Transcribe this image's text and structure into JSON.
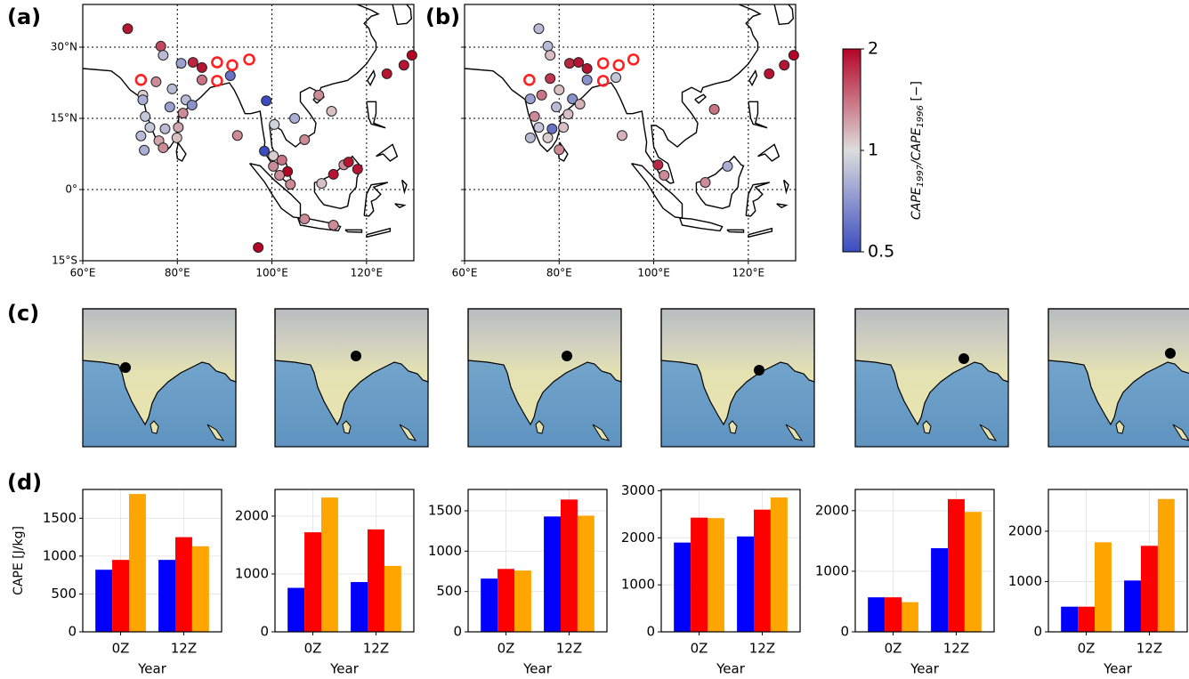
{
  "panel_labels": [
    "(a)",
    "(b)",
    "(c)",
    "(d)"
  ],
  "chart_data": [
    {
      "type": "map-scatter",
      "xlim": [
        60,
        130
      ],
      "ylim": [
        -15,
        39
      ],
      "xticks": [
        {
          "value": 60,
          "label": "60°E"
        },
        {
          "value": 80,
          "label": "80°E"
        },
        {
          "value": 100,
          "label": "100°E"
        },
        {
          "value": 120,
          "label": "120°E"
        }
      ],
      "yticks": [
        {
          "value": -15,
          "label": "15°S"
        },
        {
          "value": 0,
          "label": "0°"
        },
        {
          "value": 15,
          "label": "15°N"
        },
        {
          "value": 30,
          "label": "30°N"
        }
      ],
      "ytick_labels": true,
      "grid": true,
      "series": [
        {
          "marker": "filled",
          "x": [
            69.5,
            76.5,
            77,
            80.8,
            83.3,
            85.2,
            85.2,
            91.2,
            72.7,
            75.5,
            78.9,
            72.7,
            78.4,
            81.8,
            83.1,
            81.2,
            73.2,
            74.2,
            77.4,
            80.2,
            72.3,
            76.1,
            79.9,
            73,
            77,
            98.8,
            100.5,
            104.8,
            109.9,
            112.6,
            92.7,
            106.9,
            98.4,
            100.3,
            100.3,
            102.1,
            103.3,
            101.6,
            103.9,
            110.5,
            113,
            115.2,
            116.2,
            118.1,
            106.9,
            113,
            97.1,
            124.3,
            127.9,
            129.6
          ],
          "y": [
            33.9,
            30.2,
            28.3,
            26.6,
            26.8,
            25.7,
            23.1,
            24,
            19.9,
            22.7,
            21.2,
            18.9,
            17.4,
            18.9,
            17.8,
            16.1,
            15.4,
            13.1,
            12.8,
            13.1,
            11.3,
            10.3,
            10.9,
            8.3,
            8.8,
            18.7,
            13.7,
            15,
            19.9,
            16.5,
            11.4,
            10.5,
            8.1,
            7.1,
            4.9,
            6.2,
            3.8,
            3,
            1.1,
            1.3,
            3.2,
            5.2,
            5.8,
            4.3,
            -6.2,
            -7.5,
            -12.2,
            24.4,
            26.2,
            28.3
          ],
          "values": [
            1.9,
            1.6,
            0.85,
            0.75,
            1.8,
            1.9,
            1.4,
            0.6,
            1.05,
            1.3,
            0.85,
            0.8,
            0.75,
            0.85,
            0.7,
            1.3,
            0.9,
            0.9,
            0.85,
            1.2,
            0.85,
            1.2,
            1.1,
            0.8,
            1.3,
            0.5,
            0.95,
            0.8,
            1.3,
            1.1,
            1.3,
            1.3,
            0.5,
            1.05,
            1.3,
            1.4,
            2,
            1.3,
            1.3,
            1.1,
            1.9,
            1.3,
            1.9,
            1.9,
            1.3,
            1.3,
            2,
            1.9,
            1.9,
            2
          ]
        },
        {
          "marker": "open",
          "color": "#ff2020",
          "x": [
            72.3,
            88.4,
            91.6,
            95.2,
            88.4
          ],
          "y": [
            23.1,
            26.8,
            26.2,
            27.4,
            22.9
          ]
        }
      ]
    },
    {
      "type": "map-scatter",
      "xlim": [
        60,
        130
      ],
      "ylim": [
        -15,
        39
      ],
      "xticks": [
        {
          "value": 60,
          "label": "60°E"
        },
        {
          "value": 80,
          "label": "80°E"
        },
        {
          "value": 100,
          "label": "100°E"
        },
        {
          "value": 120,
          "label": "120°E"
        }
      ],
      "yticks": [
        -15,
        0,
        15,
        30
      ],
      "ytick_labels": false,
      "grid": true,
      "series": [
        {
          "marker": "filled",
          "x": [
            75.7,
            77.6,
            78.1,
            82.2,
            84.1,
            85.9,
            78.1,
            85.9,
            92,
            80,
            73.9,
            76.3,
            82.8,
            84.4,
            79.4,
            81.9,
            74.8,
            75.7,
            78.5,
            80.9,
            73.9,
            77.6,
            80,
            93.3,
            100.9,
            102.2,
            112.8,
            115.6,
            110.9,
            124.4,
            127.6,
            129.6
          ],
          "y": [
            33.9,
            30.2,
            28.3,
            26.6,
            26.8,
            25.5,
            23.4,
            23.1,
            23.6,
            21,
            19.1,
            19.9,
            19.1,
            18,
            17.4,
            15.9,
            15.4,
            13.1,
            12.8,
            13.1,
            10.9,
            10.9,
            8.4,
            11.4,
            5.2,
            3,
            16.9,
            4.9,
            1.5,
            24.4,
            26.2,
            28.3
          ],
          "values": [
            0.85,
            0.85,
            1.1,
            1.8,
            1.9,
            1.9,
            1.7,
            0.7,
            0.9,
            1.1,
            0.75,
            1.4,
            0.7,
            1.15,
            0.85,
            1.1,
            1.3,
            0.9,
            0.6,
            1.1,
            0.85,
            1.05,
            1.3,
            1.15,
            1.8,
            1.3,
            1.4,
            0.8,
            1.3,
            1.9,
            1.9,
            2
          ]
        },
        {
          "marker": "open",
          "color": "#ff2020",
          "x": [
            73.7,
            89.3,
            92.6,
            95.7,
            89.3
          ],
          "y": [
            23.1,
            26.6,
            26.2,
            27.4,
            22.9
          ]
        }
      ]
    },
    {
      "type": "colorbar",
      "lim": [
        0.5,
        2
      ],
      "ticks": [
        0.5,
        1,
        2
      ],
      "log_scale": true,
      "colormap": [
        "#3b4cc0",
        "#dddddd",
        "#b40426"
      ],
      "label_parts": [
        "CAPE",
        "1997",
        "/CAPE",
        "1996",
        " [−]"
      ]
    },
    {
      "type": "bar",
      "categories": [
        "0Z",
        "12Z"
      ],
      "xlabel": "Year",
      "ylabel": "CAPE [J/kg]",
      "ylim": [
        0,
        1880
      ],
      "yticks": [
        0,
        500,
        1000,
        1500
      ],
      "grid": true,
      "series": [
        {
          "color": "#0000ff",
          "values": [
            820,
            950
          ]
        },
        {
          "color": "#ff0000",
          "values": [
            950,
            1250
          ]
        },
        {
          "color": "#ffa500",
          "values": [
            1820,
            1130
          ]
        }
      ]
    },
    {
      "type": "bar",
      "categories": [
        "0Z",
        "12Z"
      ],
      "xlabel": "Year",
      "ylim": [
        0,
        2460
      ],
      "yticks": [
        0,
        1000,
        2000
      ],
      "grid": true,
      "series": [
        {
          "color": "#0000ff",
          "values": [
            760,
            860
          ]
        },
        {
          "color": "#ff0000",
          "values": [
            1720,
            1770
          ]
        },
        {
          "color": "#ffa500",
          "values": [
            2320,
            1140
          ]
        }
      ]
    },
    {
      "type": "bar",
      "categories": [
        "0Z",
        "12Z"
      ],
      "xlabel": "Year",
      "ylim": [
        0,
        1765
      ],
      "yticks": [
        0,
        500,
        1000,
        1500
      ],
      "grid": true,
      "series": [
        {
          "color": "#0000ff",
          "values": [
            660,
            1430
          ]
        },
        {
          "color": "#ff0000",
          "values": [
            780,
            1640
          ]
        },
        {
          "color": "#ffa500",
          "values": [
            760,
            1440
          ]
        }
      ]
    },
    {
      "type": "bar",
      "categories": [
        "0Z",
        "12Z"
      ],
      "xlabel": "Year",
      "ylim": [
        0,
        3030
      ],
      "yticks": [
        0,
        1000,
        2000,
        3000
      ],
      "grid": true,
      "series": [
        {
          "color": "#0000ff",
          "values": [
            1900,
            2030
          ]
        },
        {
          "color": "#ff0000",
          "values": [
            2430,
            2600
          ]
        },
        {
          "color": "#ffa500",
          "values": [
            2420,
            2860
          ]
        }
      ]
    },
    {
      "type": "bar",
      "categories": [
        "0Z",
        "12Z"
      ],
      "xlabel": "Year",
      "ylim": [
        0,
        2350
      ],
      "yticks": [
        0,
        1000,
        2000
      ],
      "grid": true,
      "series": [
        {
          "color": "#0000ff",
          "values": [
            570,
            1380
          ]
        },
        {
          "color": "#ff0000",
          "values": [
            570,
            2190
          ]
        },
        {
          "color": "#ffa500",
          "values": [
            490,
            1980
          ]
        }
      ]
    },
    {
      "type": "bar",
      "categories": [
        "0Z",
        "12Z"
      ],
      "xlabel": "Year",
      "ylim": [
        0,
        2830
      ],
      "yticks": [
        0,
        1000,
        2000
      ],
      "grid": true,
      "series": [
        {
          "color": "#0000ff",
          "values": [
            500,
            1020
          ]
        },
        {
          "color": "#ff0000",
          "values": [
            500,
            1710
          ]
        },
        {
          "color": "#ffa500",
          "values": [
            1780,
            2640
          ]
        }
      ]
    }
  ]
}
